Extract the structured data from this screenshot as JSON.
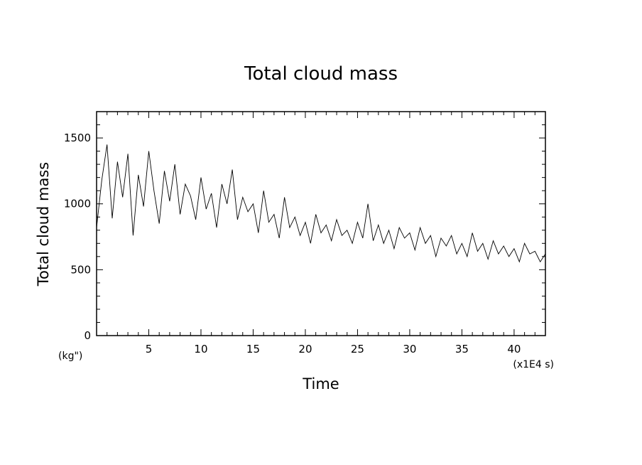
{
  "chart_data": {
    "type": "line",
    "title": "Total cloud mass",
    "xlabel": "Time",
    "ylabel": "Total cloud mass",
    "x_unit_note": "(x1E4 s)",
    "y_unit_note": "(kg\")",
    "xlim": [
      0,
      43
    ],
    "ylim": [
      0,
      1700
    ],
    "x_ticks": [
      5,
      10,
      15,
      20,
      25,
      30,
      35,
      40
    ],
    "x_tick_labels": [
      "5",
      "10",
      "15",
      "20",
      "25",
      "30",
      "35",
      "40"
    ],
    "y_ticks": [
      0,
      500,
      1000,
      1500
    ],
    "y_tick_labels": [
      "0",
      "500",
      "1000",
      "1500"
    ],
    "grid": false,
    "series": [
      {
        "color": "#000000",
        "x": [
          0,
          0.5,
          1,
          1.5,
          2,
          2.5,
          3,
          3.5,
          4,
          4.5,
          5,
          5.5,
          6,
          6.5,
          7,
          7.5,
          8,
          8.5,
          9,
          9.5,
          10,
          10.5,
          11,
          11.5,
          12,
          12.5,
          13,
          13.5,
          14,
          14.5,
          15,
          15.5,
          16,
          16.5,
          17,
          17.5,
          18,
          18.5,
          19,
          19.5,
          20,
          20.5,
          21,
          21.5,
          22,
          22.5,
          23,
          23.5,
          24,
          24.5,
          25,
          25.5,
          26,
          26.5,
          27,
          27.5,
          28,
          28.5,
          29,
          29.5,
          30,
          30.5,
          31,
          31.5,
          32,
          32.5,
          33,
          33.5,
          34,
          34.5,
          35,
          35.5,
          36,
          36.5,
          37,
          37.5,
          38,
          38.5,
          39,
          39.5,
          40,
          40.5,
          41,
          41.5,
          42,
          42.5,
          43
        ],
        "y": [
          820,
          1180,
          1450,
          890,
          1320,
          1050,
          1380,
          760,
          1220,
          980,
          1400,
          1100,
          850,
          1250,
          1020,
          1300,
          920,
          1150,
          1060,
          880,
          1200,
          960,
          1080,
          820,
          1150,
          1000,
          1260,
          880,
          1050,
          940,
          1000,
          780,
          1100,
          860,
          920,
          740,
          1050,
          820,
          900,
          760,
          860,
          700,
          920,
          780,
          840,
          720,
          880,
          760,
          800,
          700,
          860,
          740,
          1000,
          720,
          840,
          700,
          800,
          660,
          820,
          740,
          780,
          650,
          820,
          700,
          760,
          600,
          740,
          680,
          760,
          620,
          700,
          600,
          780,
          640,
          700,
          580,
          720,
          620,
          680,
          600,
          660,
          560,
          700,
          620,
          640,
          560,
          620
        ]
      }
    ]
  }
}
